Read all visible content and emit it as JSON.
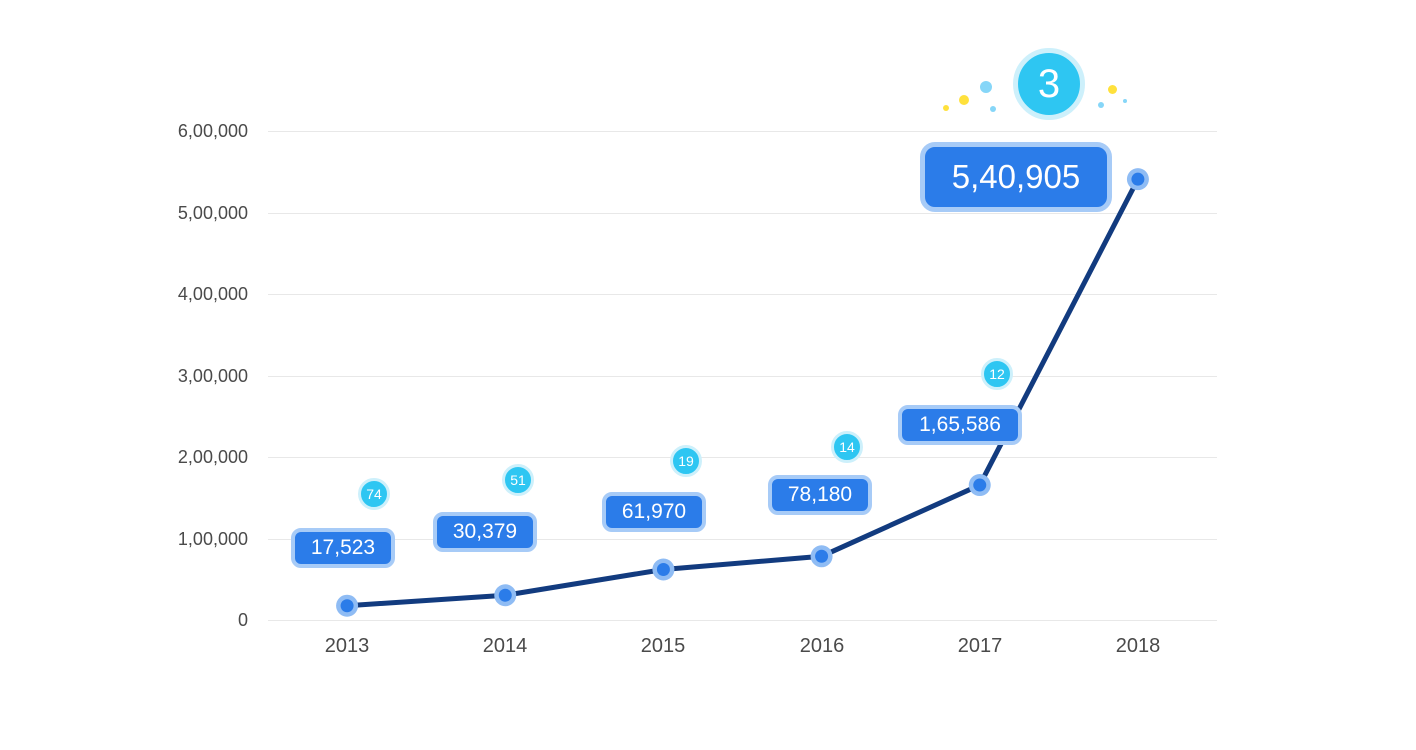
{
  "page": {
    "background": "#FFFFFF"
  },
  "chart_data": {
    "type": "line",
    "title": "",
    "xlabel": "",
    "ylabel": "",
    "categories": [
      "2013",
      "2014",
      "2015",
      "2016",
      "2017",
      "2018"
    ],
    "values": [
      17523,
      30379,
      61970,
      78180,
      165586,
      540905
    ],
    "value_labels": [
      "17,523",
      "30,379",
      "61,970",
      "78,180",
      "1,65,586",
      "5,40,905"
    ],
    "rank_badges": [
      "74",
      "51",
      "19",
      "14",
      "12",
      "3"
    ],
    "ylim": [
      0,
      600000
    ],
    "y_tick_values": [
      0,
      100000,
      200000,
      300000,
      400000,
      500000,
      600000
    ],
    "y_tick_labels": [
      "0",
      "1,00,000",
      "2,00,000",
      "3,00,000",
      "4,00,000",
      "5,00,000",
      "6,00,000"
    ],
    "grid": true,
    "legend": "none",
    "number_format": "indian-lakh",
    "colors": {
      "background": "#FFFFFF",
      "gridline": "#E8E8E8",
      "axis_text": "#4A4A4A",
      "trend_line": "#123B7F",
      "point_fill": "#2B7CE9",
      "point_ring": "#8FBCF4",
      "badge_fill": "#2B7CE9",
      "badge_border": "#A7CBF7",
      "badge_text": "#FFFFFF",
      "rank_badge_fill": "#2EC6F2",
      "rank_badge_ring": "#CDF0FB",
      "rank_badge_text": "#FFFFFF",
      "confetti_yellow": "#FFE13C",
      "confetti_blue": "#86D6F8"
    }
  }
}
